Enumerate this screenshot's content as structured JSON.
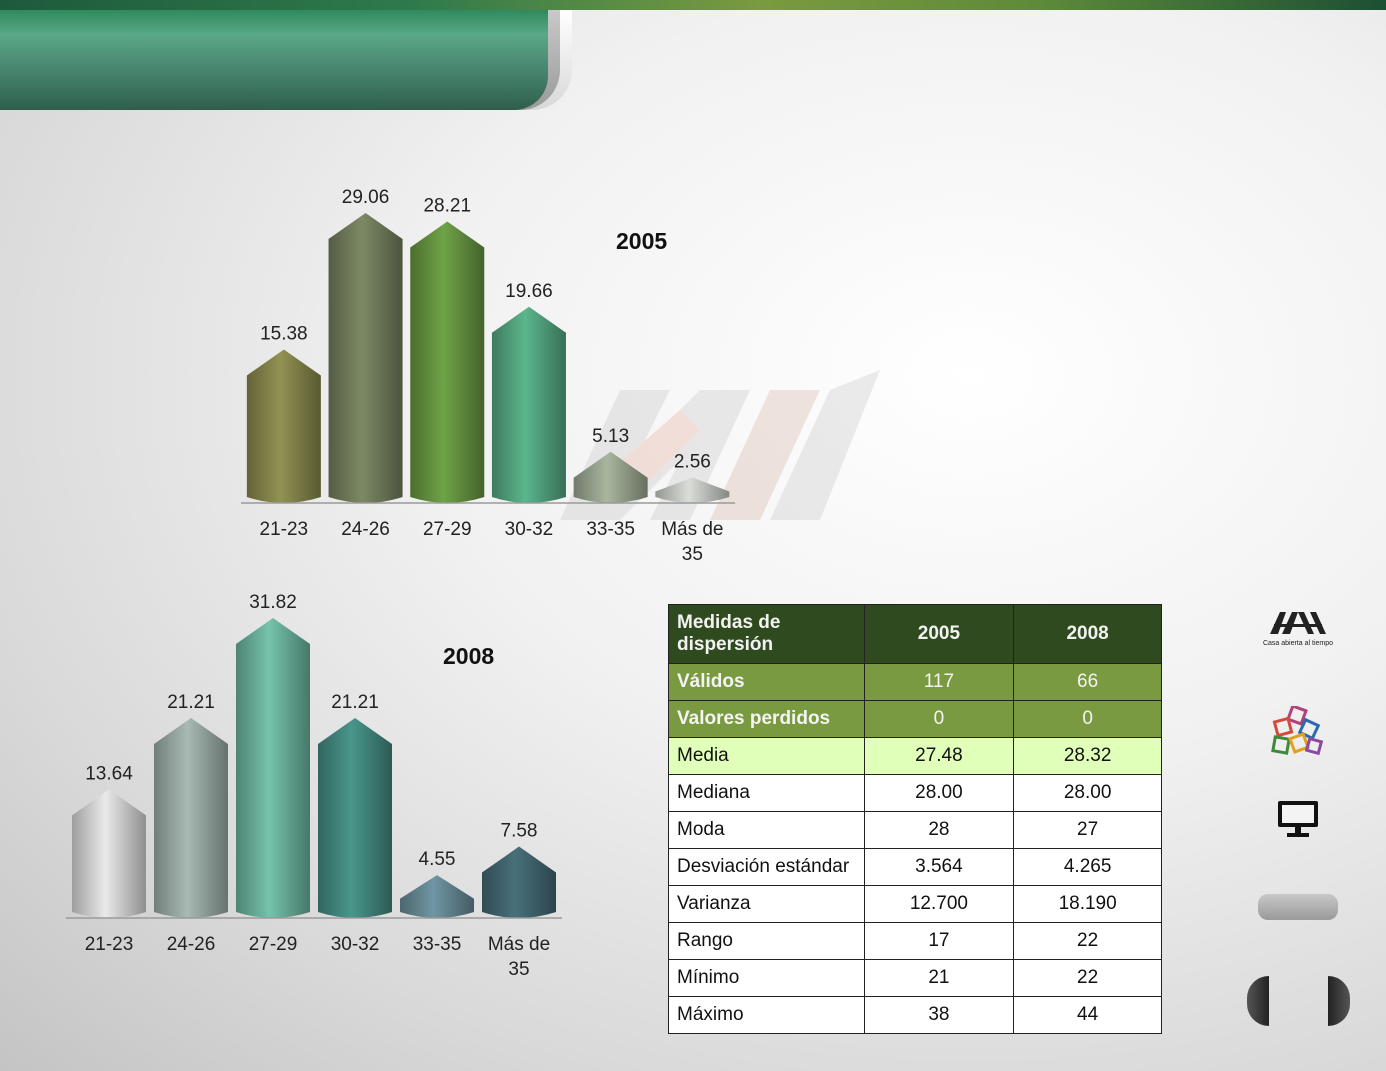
{
  "chart_data": [
    {
      "type": "bar",
      "title": "2005",
      "categories": [
        "21-23",
        "24-26",
        "27-29",
        "30-32",
        "33-35",
        "Más de 35"
      ],
      "values": [
        15.38,
        29.06,
        28.21,
        19.66,
        5.13,
        2.56
      ],
      "value_labels": [
        "15.38",
        "29.06",
        "28.21",
        "19.66",
        "5.13",
        "2.56"
      ],
      "colors": [
        "#7c7c46",
        "#6a7456",
        "#5e8a3c",
        "#4d9a77",
        "#8f9a86",
        "#b9bbb7"
      ],
      "ylim": [
        0,
        29.06
      ],
      "grid": false
    },
    {
      "type": "bar",
      "title": "2008",
      "categories": [
        "21-23",
        "24-26",
        "27-29",
        "30-32",
        "33-35",
        "Más de 35"
      ],
      "values": [
        13.64,
        21.21,
        31.82,
        21.21,
        4.55,
        7.58
      ],
      "value_labels": [
        "13.64",
        "21.21",
        "31.82",
        "21.21",
        "4.55",
        "7.58"
      ],
      "colors": [
        "#c6c6c6",
        "#8e9e98",
        "#63a592",
        "#3e7f76",
        "#5f7f8a",
        "#3d5f68"
      ],
      "ylim": [
        0,
        31.82
      ],
      "grid": false
    }
  ],
  "table": {
    "headers": [
      "Medidas de dispersión",
      "2005",
      "2008"
    ],
    "rows": [
      {
        "label": "Válidos",
        "v2005": "117",
        "v2008": "66",
        "style": "g1"
      },
      {
        "label": "Valores perdidos",
        "v2005": "0",
        "v2008": "0",
        "style": "g1"
      },
      {
        "label": "Media",
        "v2005": "27.48",
        "v2008": "28.32",
        "style": "hl"
      },
      {
        "label": "Mediana",
        "v2005": "28.00",
        "v2008": "28.00",
        "style": ""
      },
      {
        "label": "Moda",
        "v2005": "28",
        "v2008": "27",
        "style": ""
      },
      {
        "label": "Desviación estándar",
        "v2005": "3.564",
        "v2008": "4.265",
        "style": ""
      },
      {
        "label": "Varianza",
        "v2005": "12.700",
        "v2008": "18.190",
        "style": ""
      },
      {
        "label": "Rango",
        "v2005": "17",
        "v2008": "22",
        "style": ""
      },
      {
        "label": "Mínimo",
        "v2005": "21",
        "v2008": "22",
        "style": ""
      },
      {
        "label": "Máximo",
        "v2005": "38",
        "v2008": "44",
        "style": ""
      }
    ]
  },
  "side": {
    "logo_tagline": "Casa abierta al tiempo",
    "icons": [
      "uam-logo-icon",
      "colored-squares-icon",
      "monitor-icon"
    ]
  }
}
